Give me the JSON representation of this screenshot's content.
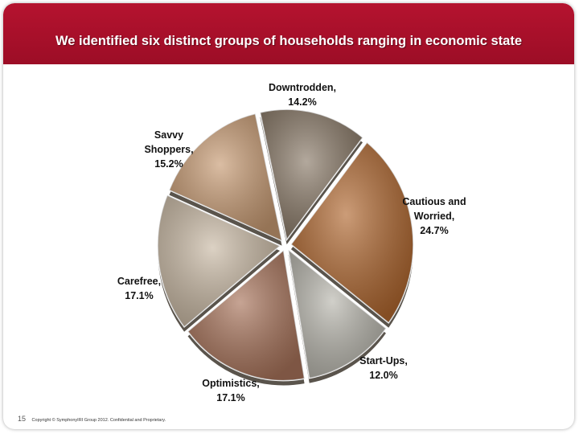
{
  "header": {
    "title": "We identified six distinct groups of households ranging in economic state"
  },
  "chart_data": {
    "type": "pie",
    "title": "",
    "slices": [
      {
        "name": "Downtrodden,",
        "value": 14.2,
        "value_label": "14.2%",
        "color": "#8a7a68"
      },
      {
        "name": "Cautious and Worried,",
        "value": 24.7,
        "value_label": "24.7%",
        "color": "#b0672f"
      },
      {
        "name": "Start-Ups,",
        "value": 12.0,
        "value_label": "12.0%",
        "color": "#b8b6ad"
      },
      {
        "name": "Optimistics,",
        "value": 17.1,
        "value_label": "17.1%",
        "color": "#a8735a"
      },
      {
        "name": "Carefree,",
        "value": 17.1,
        "value_label": "17.1%",
        "color": "#c9b9a4"
      },
      {
        "name": "Savvy Shoppers,",
        "value": 15.2,
        "value_label": "15.2%",
        "color": "#c79a72"
      }
    ]
  },
  "labels": {
    "downtrodden": [
      "Downtrodden,",
      "14.2%"
    ],
    "cautious": [
      "Cautious and",
      "Worried,",
      "24.7%"
    ],
    "startups": [
      "Start-Ups,",
      "12.0%"
    ],
    "optimistics": [
      "Optimistics,",
      "17.1%"
    ],
    "carefree": [
      "Carefree,",
      "17.1%"
    ],
    "savvy": [
      "Savvy",
      "Shoppers,",
      "15.2%"
    ]
  },
  "footer": {
    "page_number": "15",
    "copyright": "Copyright © SymphonyIRI Group 2012. Confidential and Proprietary."
  }
}
